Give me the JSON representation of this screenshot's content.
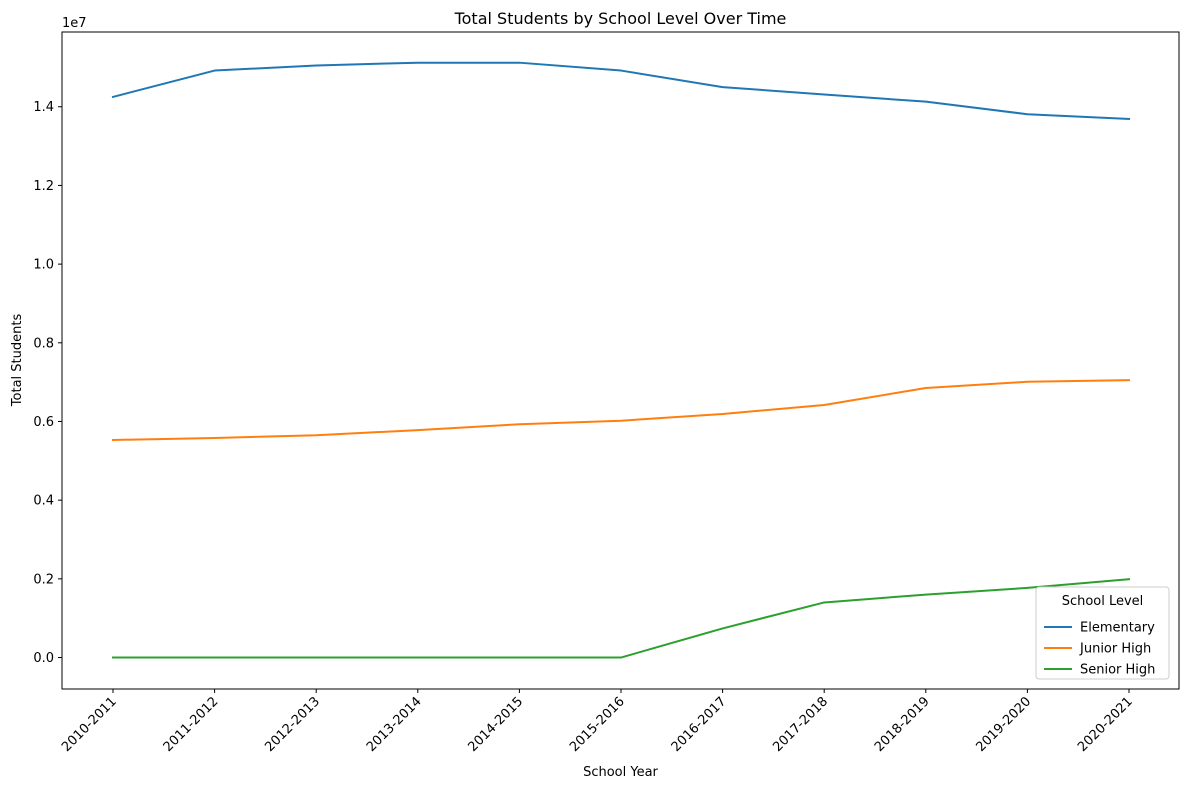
{
  "chart_data": {
    "type": "line",
    "title": "Total Students by School Level Over Time",
    "xlabel": "School Year",
    "ylabel": "Total Students",
    "y_offset_label": "1e7",
    "categories": [
      "2010-2011",
      "2011-2012",
      "2012-2013",
      "2013-2014",
      "2014-2015",
      "2015-2016",
      "2016-2017",
      "2017-2018",
      "2018-2019",
      "2019-2020",
      "2020-2021"
    ],
    "yticks": [
      0.0,
      0.2,
      0.4,
      0.6,
      0.8,
      1.0,
      1.2,
      1.4
    ],
    "ytick_labels": [
      "0.0",
      "0.2",
      "0.4",
      "0.6",
      "0.8",
      "1.0",
      "1.2",
      "1.4"
    ],
    "ylim": [
      -800000,
      15900000
    ],
    "grid": false,
    "legend": {
      "title": "School Level",
      "placement": "lower-right"
    },
    "series": [
      {
        "name": "Elementary",
        "color": "#1f77b4",
        "values": [
          14250000,
          14920000,
          15050000,
          15120000,
          15120000,
          14920000,
          14500000,
          14310000,
          14130000,
          13810000,
          13690000
        ]
      },
      {
        "name": "Junior High",
        "color": "#ff7f0e",
        "values": [
          5530000,
          5580000,
          5650000,
          5780000,
          5930000,
          6020000,
          6190000,
          6420000,
          6850000,
          7010000,
          7050000
        ]
      },
      {
        "name": "Senior High",
        "color": "#2ca02c",
        "values": [
          0,
          0,
          0,
          0,
          0,
          0,
          740000,
          1400000,
          1600000,
          1770000,
          1990000
        ]
      }
    ]
  }
}
